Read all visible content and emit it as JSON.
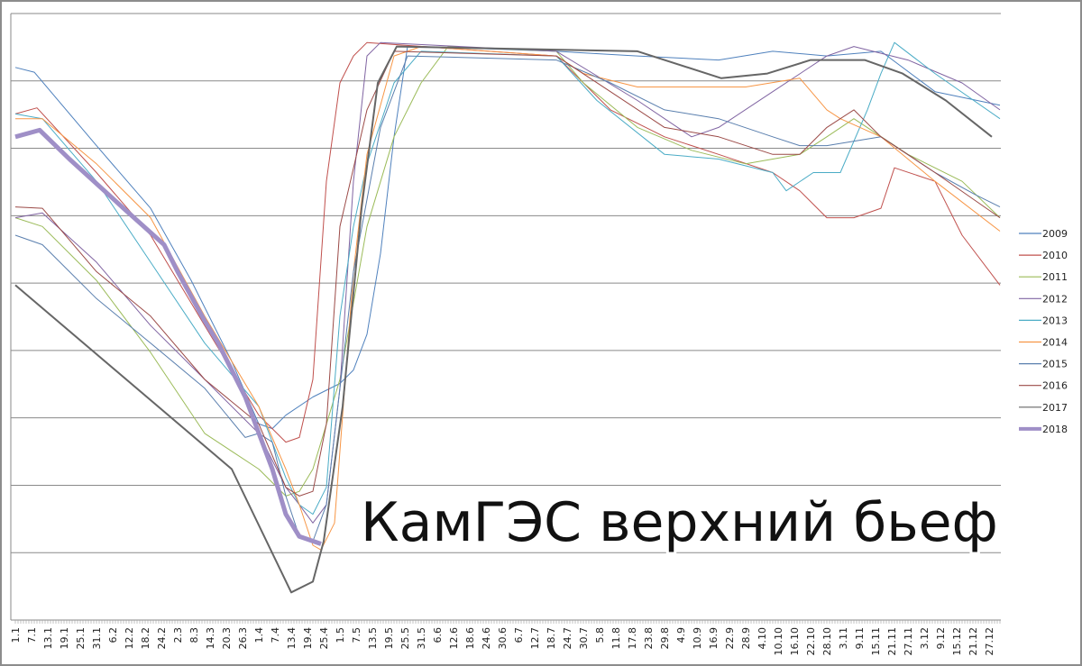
{
  "chart_data": {
    "type": "line",
    "title": "",
    "annotation": "КамГЭС верхний бьеф",
    "xlabel": "",
    "ylabel": "",
    "x_tick_labels": [
      "1.1",
      "7.1",
      "13.1",
      "19.1",
      "25.1",
      "31.1",
      "6.2",
      "12.2",
      "18.2",
      "24.2",
      "2.3",
      "8.3",
      "14.3",
      "20.3",
      "26.3",
      "1.4",
      "7.4",
      "13.4",
      "19.4",
      "25.4",
      "1.5",
      "7.5",
      "13.5",
      "19.5",
      "25.5",
      "31.5",
      "6.6",
      "12.6",
      "18.6",
      "24.6",
      "30.6",
      "6.7",
      "12.7",
      "18.7",
      "24.7",
      "30.7",
      "5.8",
      "11.8",
      "17.8",
      "23.8",
      "29.8",
      "4.9",
      "10.9",
      "16.9",
      "22.9",
      "28.9",
      "4.10",
      "10.10",
      "16.10",
      "22.10",
      "28.10",
      "3.11",
      "9.11",
      "15.11",
      "21.11",
      "27.11",
      "3.12",
      "9.12",
      "15.12",
      "21.12",
      "27.12"
    ],
    "xlim": [
      "1.1",
      "31.12"
    ],
    "ylim": [
      0,
      9
    ],
    "y_tick_labels_shown": false,
    "grid": true,
    "legend": "right",
    "series": [
      {
        "name": "2009",
        "color": "#4F81BD",
        "width": 1,
        "points": [
          [
            "1.1",
            8.2
          ],
          [
            "8.1",
            8.13
          ],
          [
            "31.1",
            7.04
          ],
          [
            "20.2",
            6.11
          ],
          [
            "7.3",
            5.04
          ],
          [
            "22.3",
            3.84
          ],
          [
            "1.4",
            2.91
          ],
          [
            "6.4",
            2.84
          ],
          [
            "11.4",
            3.04
          ],
          [
            "21.4",
            3.31
          ],
          [
            "1.5",
            3.51
          ],
          [
            "6.5",
            3.71
          ],
          [
            "11.5",
            4.24
          ],
          [
            "16.5",
            5.44
          ],
          [
            "21.5",
            7.17
          ],
          [
            "26.5",
            8.51
          ],
          [
            "31.5",
            8.51
          ],
          [
            "20.7",
            8.44
          ],
          [
            "19.8",
            8.37
          ],
          [
            "18.9",
            8.31
          ],
          [
            "8.10",
            8.44
          ],
          [
            "28.10",
            8.37
          ],
          [
            "17.11",
            8.44
          ],
          [
            "7.12",
            7.84
          ],
          [
            "31.12",
            7.64
          ]
        ]
      },
      {
        "name": "2010",
        "color": "#C0504D",
        "width": 1,
        "points": [
          [
            "1.1",
            7.51
          ],
          [
            "9.1",
            7.6
          ],
          [
            "31.1",
            6.64
          ],
          [
            "20.2",
            5.71
          ],
          [
            "12.3",
            4.37
          ],
          [
            "1.4",
            3.04
          ],
          [
            "11.4",
            2.64
          ],
          [
            "16.4",
            2.71
          ],
          [
            "21.4",
            3.57
          ],
          [
            "26.4",
            6.51
          ],
          [
            "1.5",
            7.97
          ],
          [
            "6.5",
            8.37
          ],
          [
            "11.5",
            8.57
          ],
          [
            "20.7",
            8.37
          ],
          [
            "30.7",
            7.97
          ],
          [
            "9.8",
            7.57
          ],
          [
            "29.8",
            7.17
          ],
          [
            "18.9",
            6.91
          ],
          [
            "8.10",
            6.64
          ],
          [
            "18.10",
            6.37
          ],
          [
            "28.10",
            5.97
          ],
          [
            "7.11",
            5.97
          ],
          [
            "17.11",
            6.11
          ],
          [
            "22.11",
            6.71
          ],
          [
            "7.12",
            6.51
          ],
          [
            "17.12",
            5.71
          ],
          [
            "31.12",
            4.97
          ]
        ]
      },
      {
        "name": "2011",
        "color": "#9BBB59",
        "width": 1,
        "points": [
          [
            "1.1",
            5.97
          ],
          [
            "11.1",
            5.84
          ],
          [
            "31.1",
            5.04
          ],
          [
            "20.2",
            3.97
          ],
          [
            "12.3",
            2.77
          ],
          [
            "1.4",
            2.24
          ],
          [
            "11.4",
            1.84
          ],
          [
            "16.4",
            1.91
          ],
          [
            "21.4",
            2.24
          ],
          [
            "1.5",
            3.57
          ],
          [
            "11.5",
            5.84
          ],
          [
            "21.5",
            7.17
          ],
          [
            "31.5",
            7.97
          ],
          [
            "10.6",
            8.51
          ],
          [
            "20.7",
            8.44
          ],
          [
            "30.7",
            7.97
          ],
          [
            "19.8",
            7.31
          ],
          [
            "8.9",
            6.97
          ],
          [
            "28.9",
            6.77
          ],
          [
            "18.10",
            6.91
          ],
          [
            "28.10",
            7.17
          ],
          [
            "7.11",
            7.44
          ],
          [
            "27.11",
            6.91
          ],
          [
            "17.12",
            6.51
          ],
          [
            "31.12",
            5.97
          ]
        ]
      },
      {
        "name": "2012",
        "color": "#8064A2",
        "width": 1,
        "points": [
          [
            "1.1",
            5.97
          ],
          [
            "11.1",
            6.04
          ],
          [
            "31.1",
            5.31
          ],
          [
            "20.2",
            4.37
          ],
          [
            "12.3",
            3.57
          ],
          [
            "1.4",
            2.77
          ],
          [
            "11.4",
            1.97
          ],
          [
            "16.4",
            1.71
          ],
          [
            "21.4",
            1.44
          ],
          [
            "26.4",
            1.71
          ],
          [
            "1.5",
            3.44
          ],
          [
            "6.5",
            6.51
          ],
          [
            "11.5",
            8.37
          ],
          [
            "16.5",
            8.57
          ],
          [
            "20.7",
            8.44
          ],
          [
            "19.8",
            7.71
          ],
          [
            "8.9",
            7.17
          ],
          [
            "18.9",
            7.31
          ],
          [
            "8.10",
            7.84
          ],
          [
            "28.10",
            8.37
          ],
          [
            "7.11",
            8.51
          ],
          [
            "27.11",
            8.31
          ],
          [
            "17.12",
            7.97
          ],
          [
            "31.12",
            7.57
          ]
        ]
      },
      {
        "name": "2013",
        "color": "#4BACC6",
        "width": 1,
        "points": [
          [
            "1.1",
            7.51
          ],
          [
            "11.1",
            7.44
          ],
          [
            "31.1",
            6.51
          ],
          [
            "20.2",
            5.31
          ],
          [
            "12.3",
            4.11
          ],
          [
            "1.4",
            3.17
          ],
          [
            "11.4",
            2.11
          ],
          [
            "16.4",
            1.71
          ],
          [
            "21.4",
            1.57
          ],
          [
            "26.4",
            1.97
          ],
          [
            "1.5",
            4.51
          ],
          [
            "6.5",
            5.84
          ],
          [
            "11.5",
            6.77
          ],
          [
            "21.5",
            7.97
          ],
          [
            "31.5",
            8.44
          ],
          [
            "20.7",
            8.37
          ],
          [
            "4.8",
            7.71
          ],
          [
            "29.8",
            6.91
          ],
          [
            "18.9",
            6.84
          ],
          [
            "8.10",
            6.64
          ],
          [
            "13.10",
            6.37
          ],
          [
            "23.10",
            6.64
          ],
          [
            "2.11",
            6.64
          ],
          [
            "12.11",
            7.57
          ],
          [
            "17.11",
            8.11
          ],
          [
            "22.11",
            8.57
          ],
          [
            "7.12",
            8.11
          ],
          [
            "31.12",
            7.44
          ]
        ]
      },
      {
        "name": "2014",
        "color": "#F79646",
        "width": 1,
        "points": [
          [
            "1.1",
            7.44
          ],
          [
            "11.1",
            7.44
          ],
          [
            "31.1",
            6.77
          ],
          [
            "20.2",
            5.97
          ],
          [
            "12.3",
            4.51
          ],
          [
            "1.4",
            3.17
          ],
          [
            "11.4",
            2.24
          ],
          [
            "16.4",
            1.71
          ],
          [
            "21.4",
            1.11
          ],
          [
            "24.4",
            1.04
          ],
          [
            "29.4",
            1.44
          ],
          [
            "6.5",
            5.17
          ],
          [
            "11.5",
            6.91
          ],
          [
            "21.5",
            8.37
          ],
          [
            "31.5",
            8.51
          ],
          [
            "20.7",
            8.37
          ],
          [
            "30.7",
            8.11
          ],
          [
            "19.8",
            7.91
          ],
          [
            "8.9",
            7.91
          ],
          [
            "28.9",
            7.91
          ],
          [
            "18.10",
            8.04
          ],
          [
            "28.10",
            7.57
          ],
          [
            "2.11",
            7.44
          ],
          [
            "17.11",
            7.17
          ],
          [
            "7.12",
            6.51
          ],
          [
            "31.12",
            5.77
          ]
        ]
      },
      {
        "name": "2015",
        "color": "#5A7FAE",
        "width": 1,
        "points": [
          [
            "1.1",
            5.71
          ],
          [
            "11.1",
            5.57
          ],
          [
            "31.1",
            4.77
          ],
          [
            "20.2",
            4.11
          ],
          [
            "12.3",
            3.44
          ],
          [
            "27.3",
            2.71
          ],
          [
            "1.4",
            2.77
          ],
          [
            "6.4",
            2.64
          ],
          [
            "11.4",
            1.84
          ],
          [
            "16.4",
            1.24
          ],
          [
            "21.4",
            1.17
          ],
          [
            "26.4",
            1.71
          ],
          [
            "6.5",
            5.17
          ],
          [
            "16.5",
            7.31
          ],
          [
            "26.5",
            8.37
          ],
          [
            "20.7",
            8.31
          ],
          [
            "9.8",
            7.97
          ],
          [
            "29.8",
            7.57
          ],
          [
            "18.9",
            7.44
          ],
          [
            "8.10",
            7.17
          ],
          [
            "18.10",
            7.04
          ],
          [
            "28.10",
            7.04
          ],
          [
            "17.11",
            7.17
          ],
          [
            "7.12",
            6.64
          ],
          [
            "22.12",
            6.31
          ],
          [
            "31.12",
            6.13
          ]
        ]
      },
      {
        "name": "2016",
        "color": "#9B4A47",
        "width": 1,
        "points": [
          [
            "1.1",
            6.13
          ],
          [
            "11.1",
            6.11
          ],
          [
            "31.1",
            5.17
          ],
          [
            "20.2",
            4.51
          ],
          [
            "12.3",
            3.57
          ],
          [
            "1.4",
            2.91
          ],
          [
            "11.4",
            1.97
          ],
          [
            "16.4",
            1.84
          ],
          [
            "21.4",
            1.91
          ],
          [
            "26.4",
            2.91
          ],
          [
            "1.5",
            5.84
          ],
          [
            "11.5",
            7.57
          ],
          [
            "21.5",
            8.44
          ],
          [
            "20.7",
            8.37
          ],
          [
            "9.8",
            7.84
          ],
          [
            "29.8",
            7.31
          ],
          [
            "18.9",
            7.17
          ],
          [
            "8.10",
            6.91
          ],
          [
            "18.10",
            6.91
          ],
          [
            "28.10",
            7.31
          ],
          [
            "7.11",
            7.57
          ],
          [
            "17.11",
            7.17
          ],
          [
            "7.12",
            6.64
          ],
          [
            "31.12",
            5.97
          ]
        ]
      },
      {
        "name": "2017",
        "color": "#666666",
        "width": 2,
        "points": [
          [
            "1.1",
            4.97
          ],
          [
            "22.3",
            2.24
          ],
          [
            "13.4",
            0.41
          ],
          [
            "21.4",
            0.57
          ],
          [
            "25.4",
            1.17
          ],
          [
            "2.5",
            3.17
          ],
          [
            "9.5",
            6.11
          ],
          [
            "15.5",
            7.97
          ],
          [
            "22.5",
            8.51
          ],
          [
            "19.8",
            8.44
          ],
          [
            "19.9",
            8.04
          ],
          [
            "6.10",
            8.11
          ],
          [
            "22.10",
            8.31
          ],
          [
            "11.11",
            8.31
          ],
          [
            "25.11",
            8.11
          ],
          [
            "11.12",
            7.71
          ],
          [
            "28.12",
            7.17
          ]
        ]
      },
      {
        "name": "2018",
        "color": "#9F8FC7",
        "width": 5,
        "points": [
          [
            "1.1",
            7.17
          ],
          [
            "10.1",
            7.27
          ],
          [
            "21.1",
            6.84
          ],
          [
            "10.2",
            6.11
          ],
          [
            "25.2",
            5.57
          ],
          [
            "2.3",
            5.17
          ],
          [
            "12.3",
            4.44
          ],
          [
            "17.3",
            4.11
          ],
          [
            "27.3",
            3.31
          ],
          [
            "6.4",
            2.24
          ],
          [
            "11.4",
            1.57
          ],
          [
            "16.4",
            1.24
          ],
          [
            "24.4",
            1.13
          ]
        ]
      }
    ]
  }
}
